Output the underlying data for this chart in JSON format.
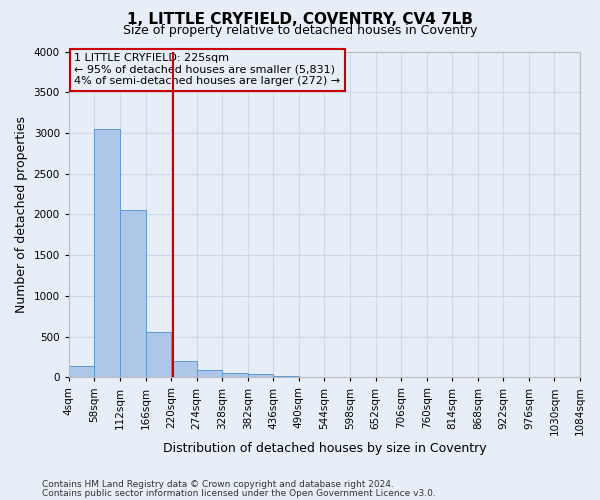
{
  "title": "1, LITTLE CRYFIELD, COVENTRY, CV4 7LB",
  "subtitle": "Size of property relative to detached houses in Coventry",
  "xlabel": "Distribution of detached houses by size in Coventry",
  "ylabel": "Number of detached properties",
  "footer_line1": "Contains HM Land Registry data © Crown copyright and database right 2024.",
  "footer_line2": "Contains public sector information licensed under the Open Government Licence v3.0.",
  "bar_edges": [
    4,
    58,
    112,
    166,
    220,
    274,
    328,
    382,
    436,
    490,
    544,
    598,
    652,
    706,
    760,
    814,
    868,
    922,
    976,
    1030,
    1084
  ],
  "bar_heights": [
    140,
    3050,
    2050,
    560,
    200,
    90,
    60,
    40,
    15,
    5,
    2,
    1,
    0,
    0,
    0,
    0,
    0,
    0,
    0,
    0
  ],
  "bar_color": "#aec6e8",
  "bar_edgecolor": "#5b9bd5",
  "grid_color": "#d0d8e8",
  "bg_color": "#e8eef8",
  "vline_x": 225,
  "vline_color": "#cc0000",
  "annotation_line1": "1 LITTLE CRYFIELD: 225sqm",
  "annotation_line2": "← 95% of detached houses are smaller (5,831)",
  "annotation_line3": "4% of semi-detached houses are larger (272) →",
  "annotation_box_color": "#cc0000",
  "ylim": [
    0,
    4000
  ],
  "xlim": [
    4,
    1084
  ],
  "title_fontsize": 11,
  "subtitle_fontsize": 9,
  "ylabel_fontsize": 9,
  "xlabel_fontsize": 9,
  "tick_fontsize": 7.5,
  "footer_fontsize": 6.5
}
